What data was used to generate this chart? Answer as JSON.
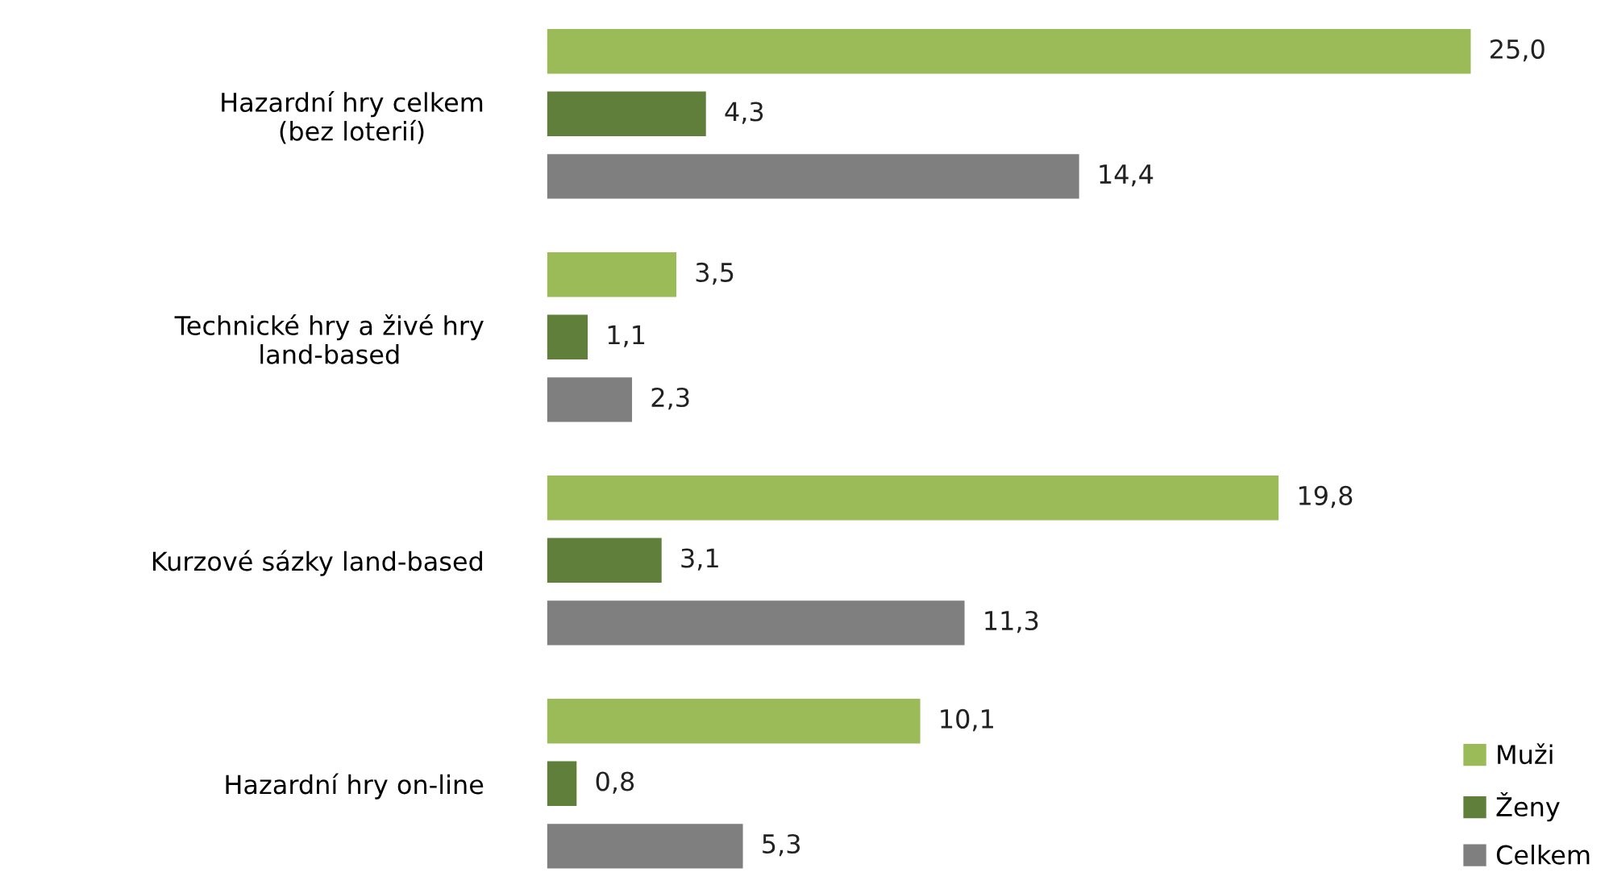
{
  "chart_data": {
    "type": "bar",
    "orientation": "horizontal",
    "categories": [
      "Hazardní hry celkem\n(bez loterií)",
      "Technické hry a živé hry\nland-based",
      "Kurzové sázky land-based",
      "Hazardní hry on-line"
    ],
    "series": [
      {
        "name": "Muži",
        "color": "#9bbb59",
        "values": [
          25.0,
          3.5,
          19.8,
          10.1
        ],
        "value_labels": [
          "25,0",
          "3,5",
          "19,8",
          "10,1"
        ]
      },
      {
        "name": "Ženy",
        "color": "#5f7f3a",
        "values": [
          4.3,
          1.1,
          3.1,
          0.8
        ],
        "value_labels": [
          "4,3",
          "1,1",
          "3,1",
          "0,8"
        ]
      },
      {
        "name": "Celkem",
        "color": "#7f7f7f",
        "values": [
          14.4,
          2.3,
          11.3,
          5.3
        ],
        "value_labels": [
          "14,4",
          "2,3",
          "11,3",
          "5,3"
        ]
      }
    ],
    "legend": "bottom right",
    "grid": false,
    "tick_labels": "y"
  }
}
